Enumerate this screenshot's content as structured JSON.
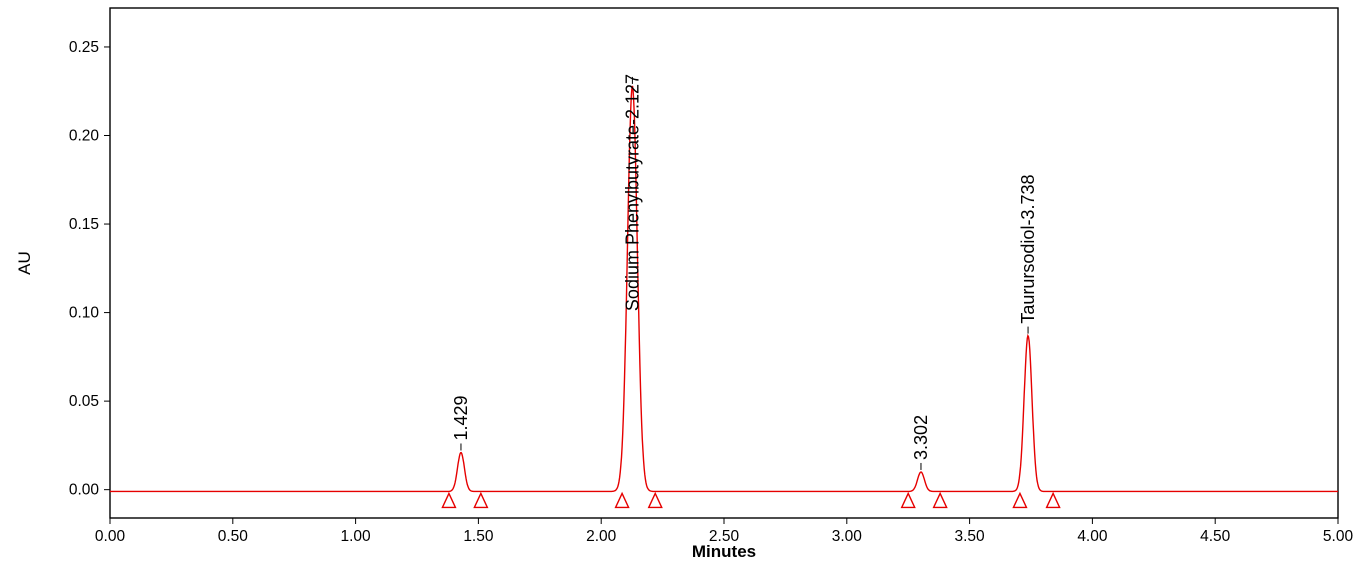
{
  "chart_data": {
    "type": "line",
    "title": "",
    "xlabel": "Minutes",
    "ylabel": "AU",
    "xlim": [
      0.0,
      5.0
    ],
    "ylim": [
      -0.016,
      0.272
    ],
    "x_ticks": [
      "0.00",
      "0.50",
      "1.00",
      "1.50",
      "2.00",
      "2.50",
      "3.00",
      "3.50",
      "4.00",
      "4.50",
      "5.00"
    ],
    "y_ticks": [
      "0.00",
      "0.05",
      "0.10",
      "0.15",
      "0.20",
      "0.25"
    ],
    "grid": false,
    "legend": false,
    "trace_color": "#e60000",
    "axis_color": "#000000",
    "baseline_au": -0.001,
    "peaks": [
      {
        "label": "1.429",
        "retention_time": 1.429,
        "height_au": 0.022,
        "sigma_min": 0.014,
        "integration_start": 1.38,
        "integration_end": 1.51
      },
      {
        "label": "Sodium Phenylbutyrate-2.127",
        "retention_time": 2.127,
        "height_au": 0.229,
        "sigma_min": 0.02,
        "integration_start": 2.085,
        "integration_end": 2.22
      },
      {
        "label": "3.302",
        "retention_time": 3.302,
        "height_au": 0.011,
        "sigma_min": 0.014,
        "integration_start": 3.25,
        "integration_end": 3.38
      },
      {
        "label": "Taurursodiol-3.738",
        "retention_time": 3.738,
        "height_au": 0.088,
        "sigma_min": 0.016,
        "integration_start": 3.705,
        "integration_end": 3.84
      }
    ]
  }
}
